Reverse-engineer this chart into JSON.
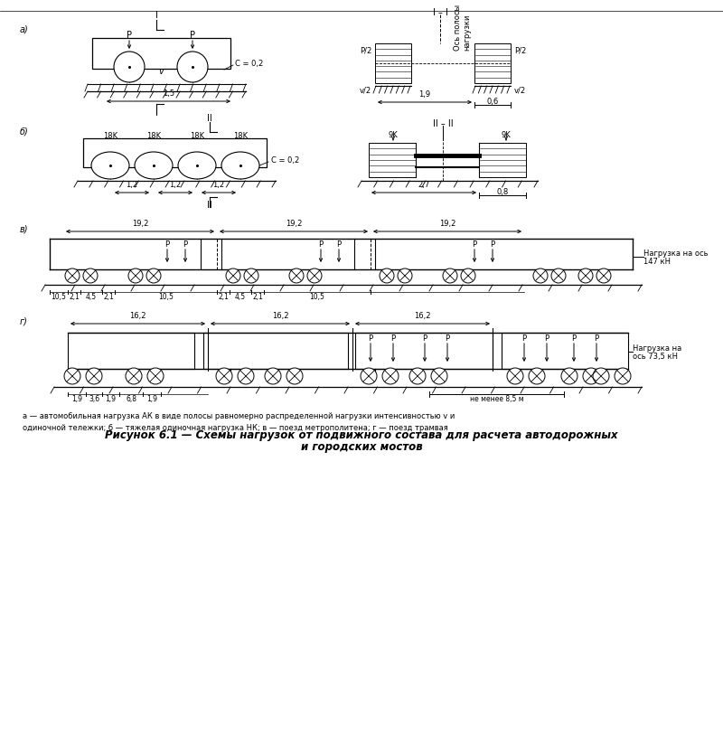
{
  "bg_color": "#ffffff",
  "line_color": "#000000",
  "caption": "а — автомобильная нагрузка АК в виде полосы равномерно распределенной нагрузки интенсивностью v и\nодиночной тележки; б — тяжелая одиночная нагрузка НК; в — поезд метрополитена; г —— поезд трамвая",
  "title_line1": "Рисунок 6.1 — Схемы нагрузок от подвижного состава для расчета автодорожных",
  "title_line2": "и городских мостов"
}
